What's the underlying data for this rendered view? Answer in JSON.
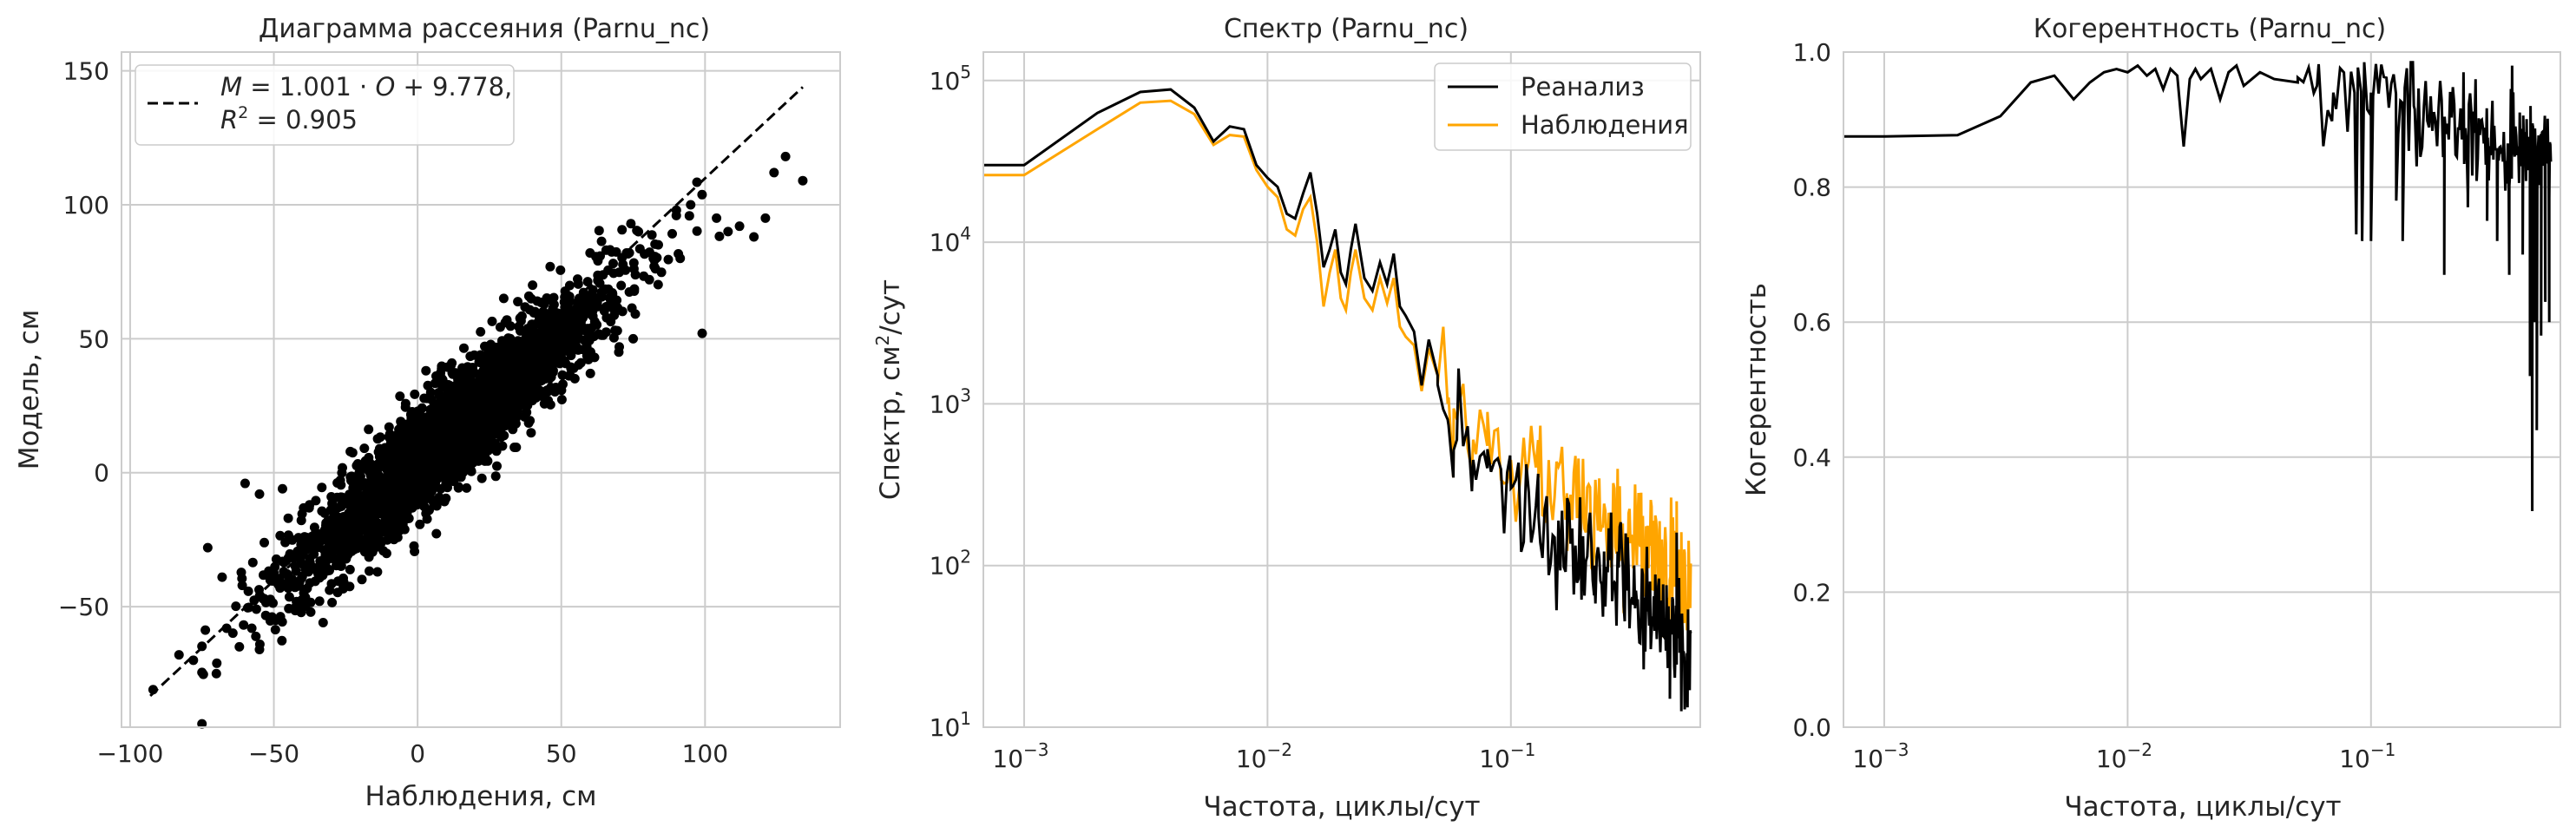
{
  "chart_data": [
    {
      "type": "scatter",
      "title": "Диаграмма рассеяния (Parnu_nc)",
      "xlabel": "Наблюдения, см",
      "ylabel": "Модель, см",
      "xlim": [
        -103,
        147
      ],
      "ylim": [
        -95,
        157
      ],
      "xticks": [
        -100,
        -50,
        0,
        50,
        100
      ],
      "xtick_labels": [
        "−100",
        "−50",
        "0",
        "50",
        "100"
      ],
      "yticks": [
        -50,
        0,
        50,
        100,
        150
      ],
      "ytick_labels": [
        "−50",
        "0",
        "50",
        "100",
        "150"
      ],
      "grid": true,
      "legend_position": "top-left",
      "legend": {
        "line1_pre": "M",
        "line1_mid": " = 1.001 · ",
        "line1_o": "O",
        "line1_post": " + 9.778,",
        "line2_pre": "R",
        "line2_sup": "2",
        "line2_post": " = 0.905"
      },
      "fit": {
        "slope": 1.001,
        "intercept": 9.778,
        "x_range": [
          -93,
          134
        ],
        "style": "dashed"
      },
      "points_note_count": 3000,
      "outliers": [
        {
          "x": -73,
          "y": -28
        },
        {
          "x": -68,
          "y": -39
        },
        {
          "x": -60,
          "y": -4
        },
        {
          "x": -55,
          "y": -8
        },
        {
          "x": -47,
          "y": -6
        },
        {
          "x": -45,
          "y": -17
        },
        {
          "x": -78,
          "y": -70
        },
        {
          "x": -70,
          "y": -75
        },
        {
          "x": -62,
          "y": -65
        },
        {
          "x": -55,
          "y": -66
        },
        {
          "x": -83,
          "y": -68
        },
        {
          "x": 99,
          "y": 52
        },
        {
          "x": 104,
          "y": 95
        },
        {
          "x": 108,
          "y": 90
        },
        {
          "x": 112,
          "y": 92
        },
        {
          "x": 117,
          "y": 88
        },
        {
          "x": 121,
          "y": 95
        },
        {
          "x": 124,
          "y": 112
        },
        {
          "x": 128,
          "y": 118
        },
        {
          "x": 134,
          "y": 109
        },
        {
          "x": -92,
          "y": -81
        },
        {
          "x": 82,
          "y": 80
        },
        {
          "x": 90,
          "y": 96
        },
        {
          "x": 95,
          "y": 100
        },
        {
          "x": 70,
          "y": 45
        },
        {
          "x": 75,
          "y": 50
        },
        {
          "x": 60,
          "y": 82
        },
        {
          "x": 40,
          "y": 70
        }
      ]
    },
    {
      "type": "line",
      "title": "Спектр (Parnu_nc)",
      "xlabel": "Частота, циклы/сут",
      "ylabel_pre": "Спектр, см",
      "ylabel_sup": "2",
      "ylabel_post": "/сут",
      "xscale": "log",
      "yscale": "log",
      "xlim": [
        0.00068,
        0.6
      ],
      "ylim": [
        10,
        150000
      ],
      "xticks": [
        0.001,
        0.01,
        0.1
      ],
      "xtick_labels": [
        {
          "base": "10",
          "exp": "−3"
        },
        {
          "base": "10",
          "exp": "−2"
        },
        {
          "base": "10",
          "exp": "−1"
        }
      ],
      "yticks": [
        10,
        100,
        1000,
        10000,
        100000
      ],
      "ytick_labels": [
        {
          "base": "10",
          "exp": "1"
        },
        {
          "base": "10",
          "exp": "2"
        },
        {
          "base": "10",
          "exp": "3"
        },
        {
          "base": "10",
          "exp": "4"
        },
        {
          "base": "10",
          "exp": "5"
        }
      ],
      "grid": true,
      "legend_position": "top-right",
      "series": [
        {
          "name": "Реанализ",
          "color": "#000000",
          "anchors": [
            [
              0.00068,
              30000
            ],
            [
              0.001,
              30000
            ],
            [
              0.002,
              63000
            ],
            [
              0.003,
              85000
            ],
            [
              0.004,
              88000
            ],
            [
              0.005,
              68000
            ],
            [
              0.006,
              42000
            ],
            [
              0.007,
              52000
            ],
            [
              0.008,
              50000
            ],
            [
              0.009,
              30000
            ],
            [
              0.01,
              25000
            ],
            [
              0.011,
              22000
            ],
            [
              0.012,
              15000
            ],
            [
              0.013,
              14000
            ],
            [
              0.014,
              20000
            ],
            [
              0.015,
              27000
            ],
            [
              0.016,
              15000
            ],
            [
              0.017,
              7000
            ],
            [
              0.018,
              9000
            ],
            [
              0.019,
              12000
            ],
            [
              0.02,
              6500
            ],
            [
              0.021,
              5500
            ],
            [
              0.022,
              9000
            ],
            [
              0.023,
              13000
            ],
            [
              0.025,
              6000
            ],
            [
              0.027,
              5000
            ],
            [
              0.029,
              7500
            ],
            [
              0.031,
              5500
            ],
            [
              0.033,
              8500
            ],
            [
              0.035,
              4000
            ],
            [
              0.037,
              3500
            ],
            [
              0.04,
              2800
            ],
            [
              0.043,
              1300
            ],
            [
              0.046,
              2500
            ],
            [
              0.05,
              1500
            ],
            [
              0.055,
              800
            ],
            [
              0.06,
              600
            ],
            [
              0.07,
              450
            ],
            [
              0.08,
              400
            ],
            [
              0.1,
              300
            ],
            [
              0.13,
              200
            ],
            [
              0.17,
              150
            ],
            [
              0.22,
              100
            ],
            [
              0.3,
              70
            ],
            [
              0.4,
              45
            ],
            [
              0.5,
              30
            ]
          ],
          "dips": [
            [
              0.058,
              350
            ],
            [
              0.45,
              15
            ]
          ],
          "highs": [
            [
              0.48,
              160
            ]
          ]
        },
        {
          "name": "Наблюдения",
          "color": "#ffa500",
          "anchors": [
            [
              0.00068,
              26000
            ],
            [
              0.001,
              26000
            ],
            [
              0.002,
              50000
            ],
            [
              0.003,
              73000
            ],
            [
              0.004,
              75000
            ],
            [
              0.005,
              62000
            ],
            [
              0.006,
              40000
            ],
            [
              0.007,
              46000
            ],
            [
              0.008,
              45000
            ],
            [
              0.009,
              28000
            ],
            [
              0.01,
              22000
            ],
            [
              0.011,
              19000
            ],
            [
              0.012,
              12000
            ],
            [
              0.013,
              11000
            ],
            [
              0.014,
              16000
            ],
            [
              0.015,
              19000
            ],
            [
              0.016,
              10000
            ],
            [
              0.017,
              4000
            ],
            [
              0.018,
              6500
            ],
            [
              0.019,
              9000
            ],
            [
              0.02,
              4500
            ],
            [
              0.021,
              3800
            ],
            [
              0.022,
              6500
            ],
            [
              0.023,
              9000
            ],
            [
              0.025,
              4500
            ],
            [
              0.027,
              3800
            ],
            [
              0.029,
              6000
            ],
            [
              0.031,
              4200
            ],
            [
              0.033,
              6000
            ],
            [
              0.035,
              3000
            ],
            [
              0.037,
              2600
            ],
            [
              0.04,
              2300
            ],
            [
              0.043,
              1200
            ],
            [
              0.046,
              2200
            ],
            [
              0.05,
              1500
            ],
            [
              0.055,
              1000
            ],
            [
              0.06,
              800
            ],
            [
              0.07,
              600
            ],
            [
              0.08,
              550
            ],
            [
              0.1,
              450
            ],
            [
              0.13,
              350
            ],
            [
              0.17,
              280
            ],
            [
              0.22,
              200
            ],
            [
              0.3,
              150
            ],
            [
              0.4,
              110
            ],
            [
              0.5,
              80
            ]
          ],
          "dips": [
            [
              0.058,
              350
            ]
          ],
          "highs": [
            [
              0.48,
              250
            ]
          ]
        }
      ]
    },
    {
      "type": "line",
      "title": "Когерентность (Parnu_nc)",
      "xlabel": "Частота, циклы/сут",
      "ylabel": "Когерентность",
      "xscale": "log",
      "xlim": [
        0.00068,
        0.6
      ],
      "ylim": [
        0,
        1
      ],
      "xticks": [
        0.001,
        0.01,
        0.1
      ],
      "xtick_labels": [
        {
          "base": "10",
          "exp": "−3"
        },
        {
          "base": "10",
          "exp": "−2"
        },
        {
          "base": "10",
          "exp": "−1"
        }
      ],
      "yticks": [
        0,
        0.2,
        0.4,
        0.6,
        0.8,
        1.0
      ],
      "ytick_labels": [
        "0.0",
        "0.2",
        "0.4",
        "0.6",
        "0.8",
        "1.0"
      ],
      "grid": true,
      "series": [
        {
          "name": "",
          "color": "#000000",
          "anchors": [
            [
              0.00068,
              0.875
            ],
            [
              0.001,
              0.875
            ],
            [
              0.002,
              0.877
            ],
            [
              0.003,
              0.905
            ],
            [
              0.004,
              0.955
            ],
            [
              0.005,
              0.965
            ],
            [
              0.006,
              0.93
            ],
            [
              0.007,
              0.955
            ],
            [
              0.008,
              0.97
            ],
            [
              0.009,
              0.975
            ],
            [
              0.01,
              0.97
            ],
            [
              0.011,
              0.98
            ],
            [
              0.012,
              0.965
            ],
            [
              0.013,
              0.975
            ],
            [
              0.014,
              0.945
            ],
            [
              0.015,
              0.975
            ],
            [
              0.016,
              0.965
            ],
            [
              0.017,
              0.86
            ],
            [
              0.018,
              0.96
            ],
            [
              0.019,
              0.975
            ],
            [
              0.02,
              0.96
            ],
            [
              0.022,
              0.975
            ],
            [
              0.024,
              0.93
            ],
            [
              0.026,
              0.97
            ],
            [
              0.028,
              0.98
            ],
            [
              0.03,
              0.95
            ],
            [
              0.035,
              0.97
            ],
            [
              0.04,
              0.96
            ],
            [
              0.05,
              0.955
            ],
            [
              0.06,
              0.95
            ],
            [
              0.07,
              0.94
            ],
            [
              0.1,
              0.94
            ],
            [
              0.15,
              0.92
            ],
            [
              0.2,
              0.9
            ],
            [
              0.3,
              0.88
            ],
            [
              0.5,
              0.85
            ]
          ],
          "dips": [
            [
              0.087,
              0.73
            ],
            [
              0.092,
              0.72
            ],
            [
              0.1,
              0.72
            ],
            [
              0.127,
              0.78
            ],
            [
              0.135,
              0.72
            ],
            [
              0.2,
              0.67
            ],
            [
              0.25,
              0.77
            ],
            [
              0.3,
              0.75
            ],
            [
              0.33,
              0.72
            ],
            [
              0.37,
              0.67
            ],
            [
              0.42,
              0.7
            ],
            [
              0.45,
              0.52
            ],
            [
              0.46,
              0.32
            ],
            [
              0.47,
              0.6
            ],
            [
              0.48,
              0.44
            ],
            [
              0.5,
              0.58
            ],
            [
              0.52,
              0.63
            ],
            [
              0.54,
              0.6
            ]
          ],
          "highs": [
            [
              0.38,
              0.98
            ],
            [
              0.24,
              0.97
            ]
          ]
        }
      ]
    }
  ]
}
